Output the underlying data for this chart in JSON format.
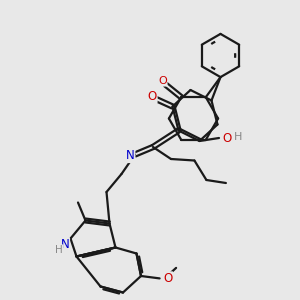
{
  "bg_color": "#e8e8e8",
  "bond_color": "#1a1a1a",
  "O_color": "#cc0000",
  "N_color": "#0000cc",
  "H_color": "#888888",
  "lw": 1.6,
  "xlim": [
    0,
    10
  ],
  "ylim": [
    0,
    10
  ]
}
